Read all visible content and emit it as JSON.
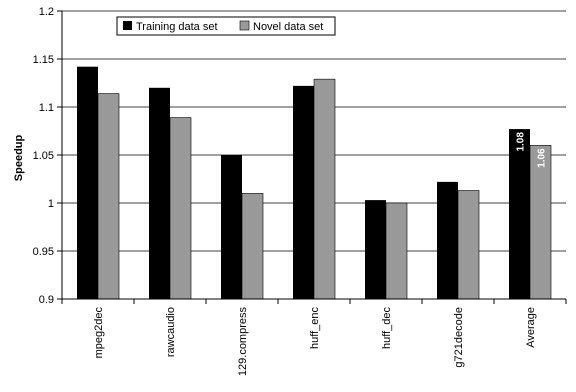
{
  "chart_data": {
    "type": "bar",
    "title": "",
    "xlabel": "",
    "ylabel": "Speedup",
    "ylim": [
      0.9,
      1.2
    ],
    "yticks": [
      "0.9",
      "0.95",
      "1",
      "1.05",
      "1.1",
      "1.15",
      "1.2"
    ],
    "grid": true,
    "legend": "top-left",
    "categories": [
      "mpeg2dec",
      "rawcaudio",
      "129.compress",
      "huff_enc",
      "huff_dec",
      "g721decode",
      "Average"
    ],
    "series": [
      {
        "name": "Training data set",
        "color": "#000000",
        "values": [
          1.142,
          1.12,
          1.05,
          1.122,
          1.003,
          1.022,
          1.077
        ]
      },
      {
        "name": "Novel data set",
        "color": "#999999",
        "values": [
          1.114,
          1.089,
          1.01,
          1.129,
          1.0,
          1.013,
          1.06
        ]
      }
    ],
    "annotations": [
      {
        "category": "Average",
        "series": "Training data set",
        "text": "1.08"
      },
      {
        "category": "Average",
        "series": "Novel data set",
        "text": "1.06"
      }
    ]
  }
}
